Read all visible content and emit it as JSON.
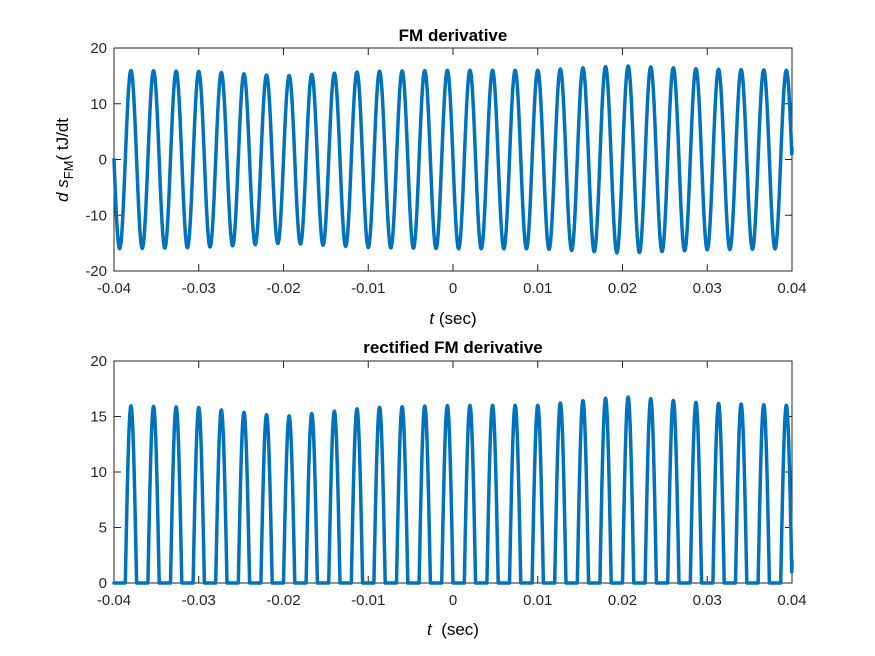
{
  "chart_data": [
    {
      "type": "line",
      "title": "FM derivative",
      "xlabel_italic": "t",
      "xlabel_rest": " (sec)",
      "ylabel_parts": {
        "d": "d",
        "s": "s",
        "sub": "FM",
        "rest": "( tJ/dt"
      },
      "xlim": [
        -0.04,
        0.04
      ],
      "ylim": [
        -20,
        20
      ],
      "xticks": [
        -0.04,
        -0.03,
        -0.02,
        -0.01,
        0,
        0.01,
        0.02,
        0.03,
        0.04
      ],
      "yticks": [
        -20,
        -10,
        0,
        10,
        20
      ],
      "xtick_labels": [
        "-0.04",
        "-0.03",
        "-0.02",
        "-0.01",
        "0",
        "0.01",
        "0.02",
        "0.03",
        "0.04"
      ],
      "ytick_labels": [
        "-20",
        "-10",
        "0",
        "10",
        "20"
      ],
      "grid": false,
      "color": "#0072BD",
      "series": {
        "cycles": 30,
        "start_value": 0,
        "end_value": 2,
        "amplitude_points": {
          "x": [
            -0.04,
            -0.03,
            -0.02,
            -0.01,
            0,
            0.01,
            0.02,
            0.03,
            0.04
          ],
          "amp": [
            16,
            15.8,
            15.0,
            15.8,
            16,
            16,
            16.8,
            16.2,
            16
          ]
        },
        "rectified": false
      }
    },
    {
      "type": "line",
      "title": "rectified FM derivative",
      "xlabel_italic": "t",
      "xlabel_rest": "  (sec)",
      "xlim": [
        -0.04,
        0.04
      ],
      "ylim": [
        0,
        20
      ],
      "xticks": [
        -0.04,
        -0.03,
        -0.02,
        -0.01,
        0,
        0.01,
        0.02,
        0.03,
        0.04
      ],
      "yticks": [
        0,
        5,
        10,
        15,
        20
      ],
      "xtick_labels": [
        "-0.04",
        "-0.03",
        "-0.02",
        "-0.01",
        "0",
        "0.01",
        "0.02",
        "0.03",
        "0.04"
      ],
      "ytick_labels": [
        "0",
        "5",
        "10",
        "15",
        "20"
      ],
      "grid": false,
      "color": "#0072BD",
      "series": {
        "cycles": 30,
        "start_value": 0,
        "end_value": 2,
        "amplitude_points": {
          "x": [
            -0.04,
            -0.03,
            -0.02,
            -0.01,
            0,
            0.01,
            0.02,
            0.03,
            0.04
          ],
          "amp": [
            16,
            15.8,
            15.0,
            15.8,
            16,
            16,
            16.8,
            16.2,
            16
          ]
        },
        "rectified": true
      }
    }
  ]
}
